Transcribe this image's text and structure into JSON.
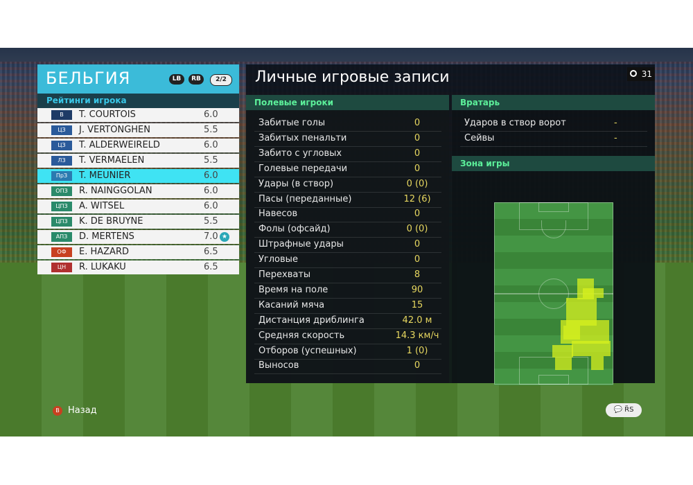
{
  "team": {
    "name": "БЕЛЬГИЯ",
    "lb": "LB",
    "rb": "RB",
    "page": "2/2"
  },
  "ratings_header": "Рейтинги игрока",
  "players": [
    {
      "pos": "В",
      "pos_color": "#1e3b66",
      "name": "T. COURTOIS",
      "rating": "6.0"
    },
    {
      "pos": "ЦЗ",
      "pos_color": "#2a5a9a",
      "name": "J. VERTONGHEN",
      "rating": "5.5"
    },
    {
      "pos": "ЦЗ",
      "pos_color": "#2a5a9a",
      "name": "T. ALDERWEIRELD",
      "rating": "6.0"
    },
    {
      "pos": "ЛЗ",
      "pos_color": "#2a5a9a",
      "name": "T. VERMAELEN",
      "rating": "5.5"
    },
    {
      "pos": "ПрЗ",
      "pos_color": "#2a7ab0",
      "name": "T. MEUNIER",
      "rating": "6.0"
    },
    {
      "pos": "ОПЗ",
      "pos_color": "#2a8a6a",
      "name": "R. NAINGGOLAN",
      "rating": "6.0"
    },
    {
      "pos": "ЦПЗ",
      "pos_color": "#2a8a6a",
      "name": "A. WITSEL",
      "rating": "6.0"
    },
    {
      "pos": "ЦПЗ",
      "pos_color": "#2a8a6a",
      "name": "K. DE BRUYNE",
      "rating": "5.5"
    },
    {
      "pos": "АПЗ",
      "pos_color": "#2a8a6a",
      "name": "D. MERTENS",
      "rating": "7.0"
    },
    {
      "pos": "ОФ",
      "pos_color": "#c84020",
      "name": "E. HAZARD",
      "rating": "6.5"
    },
    {
      "pos": "ЦН",
      "pos_color": "#b03030",
      "name": "R. LUKAKU",
      "rating": "6.5"
    }
  ],
  "selected_player_index": 4,
  "title": "Личные игровые записи",
  "timer": "31",
  "field_players_header": "Полевые игроки",
  "stats": [
    {
      "label": "Забитые голы",
      "value": "0"
    },
    {
      "label": "Забитых пенальти",
      "value": "0"
    },
    {
      "label": "Забито с угловых",
      "value": "0"
    },
    {
      "label": "Голевые передачи",
      "value": "0"
    },
    {
      "label": "Удары (в створ)",
      "value": "0 (0)"
    },
    {
      "label": "Пасы (переданные)",
      "value": "12 (6)"
    },
    {
      "label": "Навесов",
      "value": "0"
    },
    {
      "label": "Фолы (офсайд)",
      "value": "0 (0)"
    },
    {
      "label": "Штрафные удары",
      "value": "0"
    },
    {
      "label": "Угловые",
      "value": "0"
    },
    {
      "label": "Перехваты",
      "value": "8"
    },
    {
      "label": "Время на поле",
      "value": "90"
    },
    {
      "label": "Касаний мяча",
      "value": "15"
    },
    {
      "label": "Дистанция дриблинга",
      "value": "42.0 м"
    },
    {
      "label": "Средняя скорость",
      "value": "14.3 км/ч"
    },
    {
      "label": "Отборов (успешных)",
      "value": "1 (0)"
    },
    {
      "label": "Выносов",
      "value": "0"
    }
  ],
  "goalkeeper_header": "Вратарь",
  "gk_stats": [
    {
      "label": "Ударов в створ ворот",
      "value": "-"
    },
    {
      "label": "Сейвы",
      "value": "-"
    }
  ],
  "zone_header": "Зона игры",
  "back_button": "B",
  "back_label": "Назад",
  "chat_buttons": "💬 R̈S",
  "colors": {
    "accent": "#3bbbd9",
    "selected_row": "#3fe3f3",
    "value": "#e8d860",
    "section_text": "#5cf09a"
  }
}
